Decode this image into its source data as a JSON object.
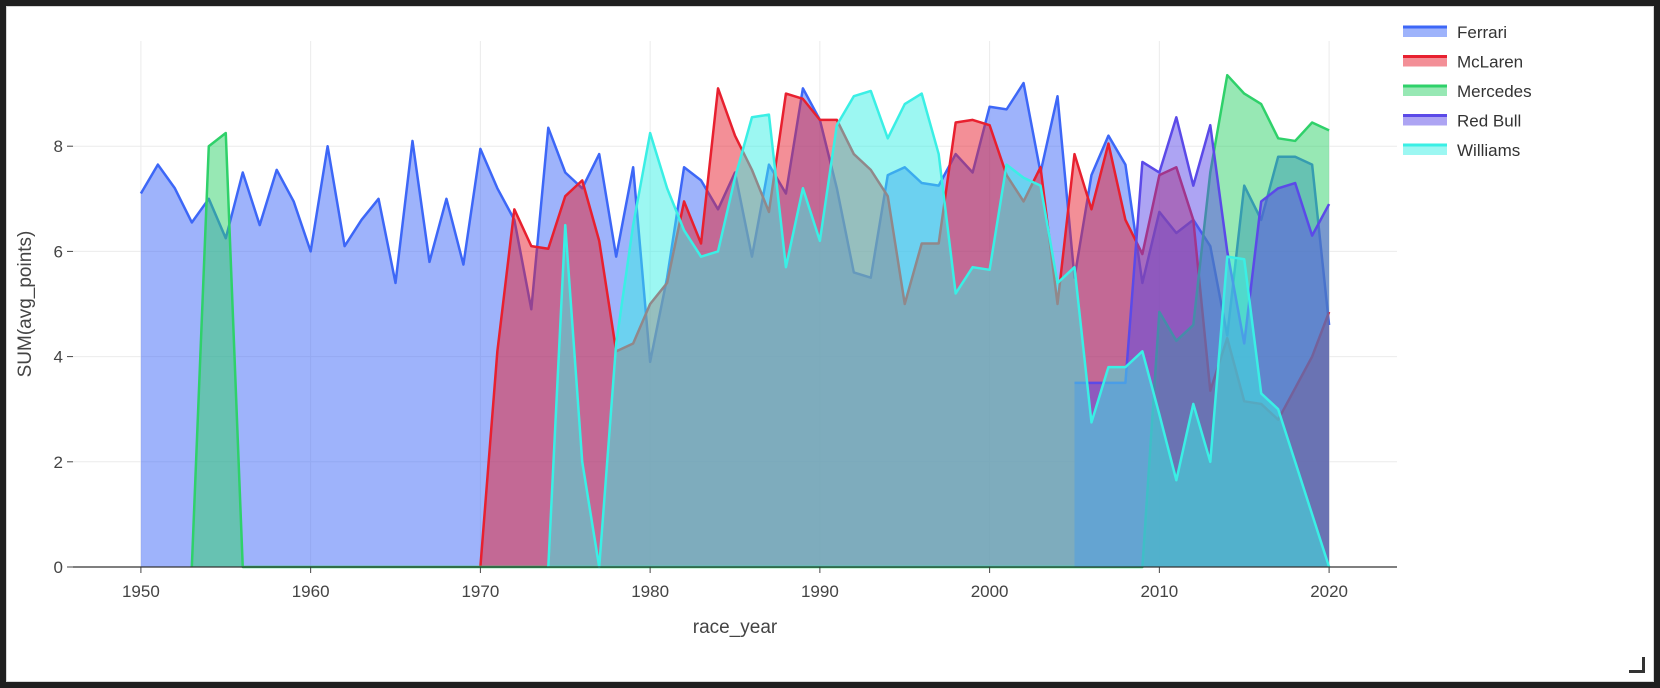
{
  "chart_data": {
    "type": "area",
    "xlabel": "race_year",
    "ylabel": "SUM(avg_points)",
    "xlim": [
      1946,
      2024
    ],
    "ylim": [
      0,
      10
    ],
    "x_ticks": [
      1950,
      1960,
      1970,
      1980,
      1990,
      2000,
      2010,
      2020
    ],
    "y_ticks": [
      0,
      2,
      4,
      6,
      8
    ],
    "grid": true,
    "legend_position": "top-right",
    "series": [
      {
        "name": "Ferrari",
        "color": "#3d67f7",
        "points": [
          [
            1950,
            7.1
          ],
          [
            1951,
            7.65
          ],
          [
            1952,
            7.2
          ],
          [
            1953,
            6.55
          ],
          [
            1954,
            7.0
          ],
          [
            1955,
            6.25
          ],
          [
            1956,
            7.5
          ],
          [
            1957,
            6.5
          ],
          [
            1958,
            7.55
          ],
          [
            1959,
            6.95
          ],
          [
            1960,
            6.0
          ],
          [
            1961,
            8.0
          ],
          [
            1962,
            6.1
          ],
          [
            1963,
            6.6
          ],
          [
            1964,
            7.0
          ],
          [
            1965,
            5.4
          ],
          [
            1966,
            8.1
          ],
          [
            1967,
            5.8
          ],
          [
            1968,
            7.0
          ],
          [
            1969,
            5.75
          ],
          [
            1970,
            7.95
          ],
          [
            1971,
            7.2
          ],
          [
            1972,
            6.6
          ],
          [
            1973,
            4.9
          ],
          [
            1974,
            8.35
          ],
          [
            1975,
            7.5
          ],
          [
            1976,
            7.2
          ],
          [
            1977,
            7.85
          ],
          [
            1978,
            5.9
          ],
          [
            1979,
            7.6
          ],
          [
            1980,
            3.9
          ],
          [
            1981,
            5.5
          ],
          [
            1982,
            7.6
          ],
          [
            1983,
            7.35
          ],
          [
            1984,
            6.8
          ],
          [
            1985,
            7.5
          ],
          [
            1986,
            5.9
          ],
          [
            1987,
            7.65
          ],
          [
            1988,
            7.1
          ],
          [
            1989,
            9.1
          ],
          [
            1990,
            8.5
          ],
          [
            1991,
            7.2
          ],
          [
            1992,
            5.6
          ],
          [
            1993,
            5.5
          ],
          [
            1994,
            7.45
          ],
          [
            1995,
            7.6
          ],
          [
            1996,
            7.3
          ],
          [
            1997,
            7.25
          ],
          [
            1998,
            7.85
          ],
          [
            1999,
            7.5
          ],
          [
            2000,
            8.75
          ],
          [
            2001,
            8.7
          ],
          [
            2002,
            9.2
          ],
          [
            2003,
            7.5
          ],
          [
            2004,
            8.95
          ],
          [
            2005,
            5.5
          ],
          [
            2006,
            7.45
          ],
          [
            2007,
            8.2
          ],
          [
            2008,
            7.65
          ],
          [
            2009,
            5.4
          ],
          [
            2010,
            6.75
          ],
          [
            2011,
            6.35
          ],
          [
            2012,
            6.6
          ],
          [
            2013,
            6.1
          ],
          [
            2014,
            4.4
          ],
          [
            2015,
            7.25
          ],
          [
            2016,
            6.6
          ],
          [
            2017,
            7.8
          ],
          [
            2018,
            7.8
          ],
          [
            2019,
            7.65
          ],
          [
            2020,
            4.6
          ]
        ]
      },
      {
        "name": "McLaren",
        "color": "#e8202f",
        "points": [
          [
            1970,
            0
          ],
          [
            1971,
            4.1
          ],
          [
            1972,
            6.8
          ],
          [
            1973,
            6.1
          ],
          [
            1974,
            6.05
          ],
          [
            1975,
            7.05
          ],
          [
            1976,
            7.35
          ],
          [
            1977,
            6.2
          ],
          [
            1978,
            4.1
          ],
          [
            1979,
            4.25
          ],
          [
            1980,
            5.0
          ],
          [
            1981,
            5.4
          ],
          [
            1982,
            6.95
          ],
          [
            1983,
            6.15
          ],
          [
            1984,
            9.1
          ],
          [
            1985,
            8.2
          ],
          [
            1986,
            7.55
          ],
          [
            1987,
            6.75
          ],
          [
            1988,
            9.0
          ],
          [
            1989,
            8.9
          ],
          [
            1990,
            8.5
          ],
          [
            1991,
            8.5
          ],
          [
            1992,
            7.85
          ],
          [
            1993,
            7.55
          ],
          [
            1994,
            7.05
          ],
          [
            1995,
            5.0
          ],
          [
            1996,
            6.15
          ],
          [
            1997,
            6.15
          ],
          [
            1998,
            8.45
          ],
          [
            1999,
            8.5
          ],
          [
            2000,
            8.4
          ],
          [
            2001,
            7.45
          ],
          [
            2002,
            6.95
          ],
          [
            2003,
            7.6
          ],
          [
            2004,
            5.0
          ],
          [
            2005,
            7.85
          ],
          [
            2006,
            6.8
          ],
          [
            2007,
            8.05
          ],
          [
            2008,
            6.6
          ],
          [
            2009,
            5.95
          ],
          [
            2010,
            7.45
          ],
          [
            2011,
            7.6
          ],
          [
            2012,
            6.6
          ],
          [
            2013,
            3.35
          ],
          [
            2014,
            4.35
          ],
          [
            2015,
            3.15
          ],
          [
            2016,
            3.1
          ],
          [
            2017,
            2.8
          ],
          [
            2018,
            3.4
          ],
          [
            2019,
            4.0
          ],
          [
            2020,
            4.85
          ]
        ]
      },
      {
        "name": "Mercedes",
        "color": "#2fd16a",
        "points": [
          [
            1953,
            0
          ],
          [
            1954,
            8.0
          ],
          [
            1955,
            8.25
          ],
          [
            1956,
            0
          ],
          [
            2009,
            0
          ],
          [
            2010,
            4.85
          ],
          [
            2011,
            4.3
          ],
          [
            2012,
            4.6
          ],
          [
            2013,
            7.5
          ],
          [
            2014,
            9.35
          ],
          [
            2015,
            9.0
          ],
          [
            2016,
            8.8
          ],
          [
            2017,
            8.15
          ],
          [
            2018,
            8.1
          ],
          [
            2019,
            8.45
          ],
          [
            2020,
            8.3
          ]
        ]
      },
      {
        "name": "Red Bull",
        "color": "#5b4ae8",
        "points": [
          [
            2005,
            3.5
          ],
          [
            2006,
            3.5
          ],
          [
            2007,
            3.5
          ],
          [
            2008,
            3.5
          ],
          [
            2009,
            7.7
          ],
          [
            2010,
            7.5
          ],
          [
            2011,
            8.55
          ],
          [
            2012,
            7.25
          ],
          [
            2013,
            8.4
          ],
          [
            2014,
            6.0
          ],
          [
            2015,
            4.25
          ],
          [
            2016,
            6.95
          ],
          [
            2017,
            7.2
          ],
          [
            2018,
            7.3
          ],
          [
            2019,
            6.3
          ],
          [
            2020,
            6.9
          ]
        ]
      },
      {
        "name": "Williams",
        "color": "#3aefe5",
        "points": [
          [
            1974,
            0
          ],
          [
            1975,
            6.5
          ],
          [
            1976,
            2.0
          ],
          [
            1977,
            0
          ],
          [
            1978,
            4.25
          ],
          [
            1979,
            6.5
          ],
          [
            1980,
            8.25
          ],
          [
            1981,
            7.2
          ],
          [
            1982,
            6.4
          ],
          [
            1983,
            5.9
          ],
          [
            1984,
            6.0
          ],
          [
            1985,
            7.4
          ],
          [
            1986,
            8.55
          ],
          [
            1987,
            8.6
          ],
          [
            1988,
            5.7
          ],
          [
            1989,
            7.2
          ],
          [
            1990,
            6.2
          ],
          [
            1991,
            8.4
          ],
          [
            1992,
            8.95
          ],
          [
            1993,
            9.05
          ],
          [
            1994,
            8.15
          ],
          [
            1995,
            8.8
          ],
          [
            1996,
            9.0
          ],
          [
            1997,
            7.85
          ],
          [
            1998,
            5.2
          ],
          [
            1999,
            5.7
          ],
          [
            2000,
            5.65
          ],
          [
            2001,
            7.65
          ],
          [
            2002,
            7.4
          ],
          [
            2003,
            7.25
          ],
          [
            2004,
            5.4
          ],
          [
            2005,
            5.7
          ],
          [
            2006,
            2.75
          ],
          [
            2007,
            3.8
          ],
          [
            2008,
            3.8
          ],
          [
            2009,
            4.1
          ],
          [
            2010,
            2.9
          ],
          [
            2011,
            1.65
          ],
          [
            2012,
            3.1
          ],
          [
            2013,
            2.0
          ],
          [
            2014,
            5.9
          ],
          [
            2015,
            5.85
          ],
          [
            2016,
            3.3
          ],
          [
            2017,
            3.0
          ],
          [
            2018,
            2.0
          ],
          [
            2019,
            1.0
          ],
          [
            2020,
            0
          ]
        ]
      }
    ]
  }
}
